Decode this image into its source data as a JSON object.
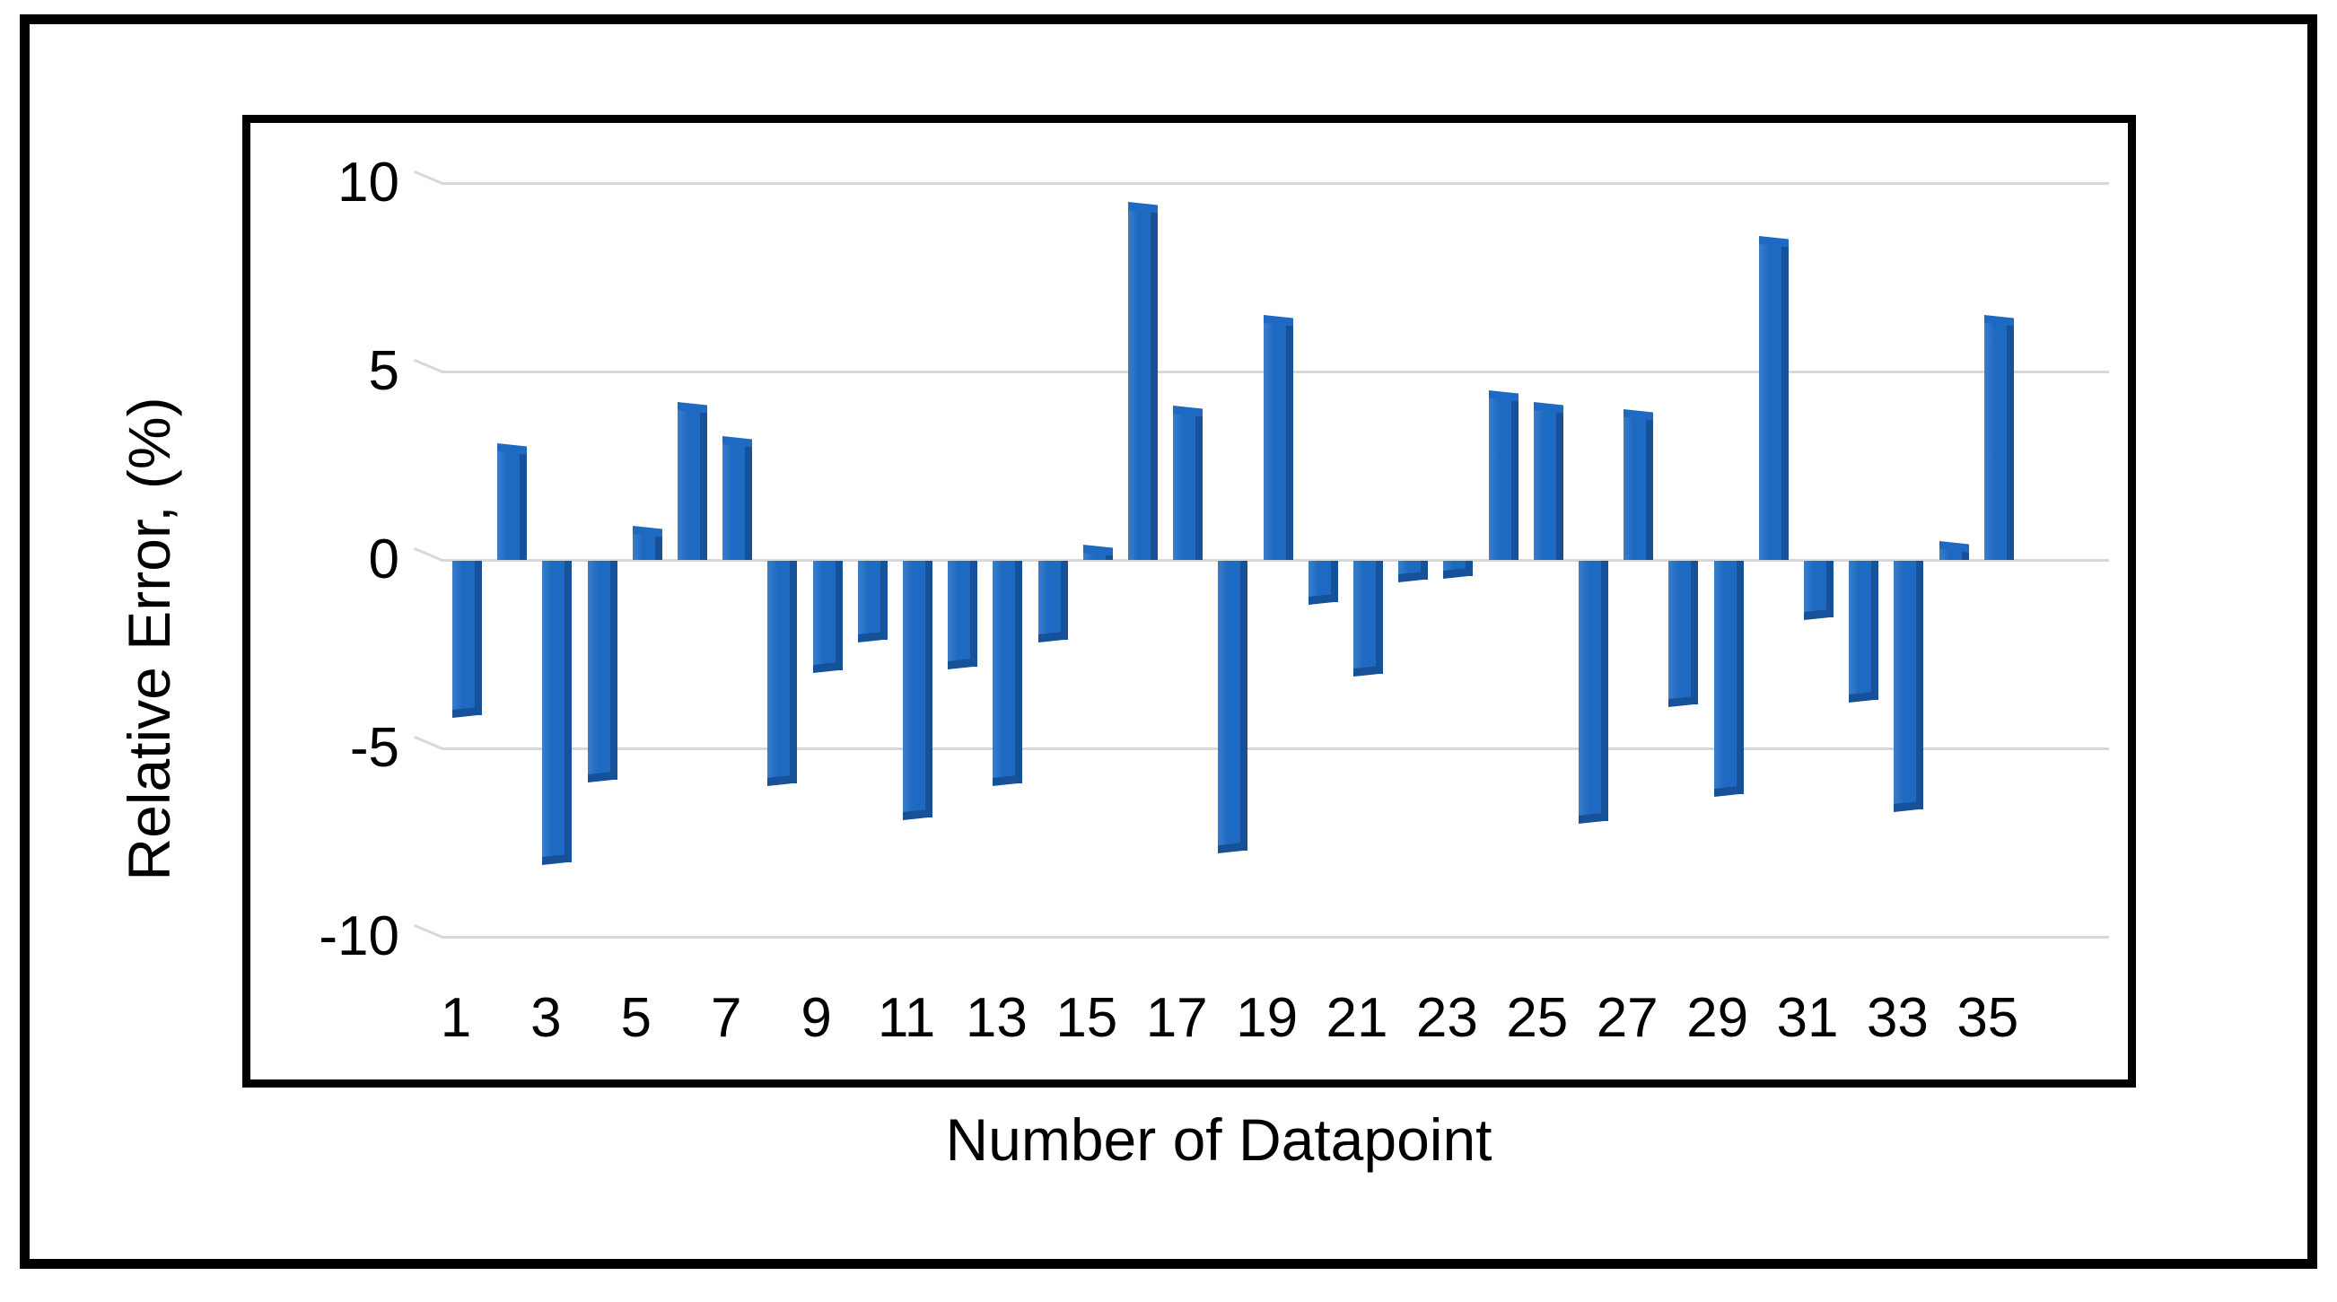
{
  "chart_data": {
    "type": "bar",
    "title": "",
    "xlabel": "Number of Datapoint",
    "ylabel": "Relative Error, (%)",
    "categories": [
      1,
      2,
      3,
      4,
      5,
      6,
      7,
      8,
      9,
      10,
      11,
      12,
      13,
      14,
      15,
      16,
      17,
      18,
      19,
      20,
      21,
      22,
      23,
      24,
      25,
      26,
      27,
      28,
      29,
      30,
      31,
      32,
      33,
      34,
      35
    ],
    "values": [
      -4.1,
      3.0,
      -8.0,
      -5.8,
      0.8,
      4.1,
      3.2,
      -5.9,
      -2.9,
      -2.1,
      -6.8,
      -2.8,
      -5.9,
      -2.1,
      0.3,
      9.4,
      4.0,
      -7.7,
      6.4,
      -1.1,
      -3.0,
      -0.5,
      -0.4,
      4.4,
      4.1,
      -6.9,
      3.9,
      -3.8,
      -6.2,
      8.5,
      -1.5,
      -3.7,
      -6.6,
      0.4,
      6.4
    ],
    "x_tick_labels": [
      "1",
      "3",
      "5",
      "7",
      "9",
      "11",
      "13",
      "15",
      "17",
      "19",
      "21",
      "23",
      "25",
      "27",
      "29",
      "31",
      "33",
      "35"
    ],
    "y_ticks": [
      "10",
      "5",
      "0",
      "-5",
      "-10"
    ],
    "y_tick_values": [
      10,
      5,
      0,
      -5,
      -10
    ],
    "ylim": [
      -10,
      10
    ],
    "grid": true,
    "legend": "none",
    "bar_style": "3d-bevel",
    "colors": {
      "bar_face": "#1e6ac2",
      "bar_side": "#17519a",
      "bar_cap": "#3b7dcb",
      "gridline": "#d8d8d8",
      "text": "#000000",
      "frame": "#000000",
      "background": "#ffffff"
    }
  }
}
